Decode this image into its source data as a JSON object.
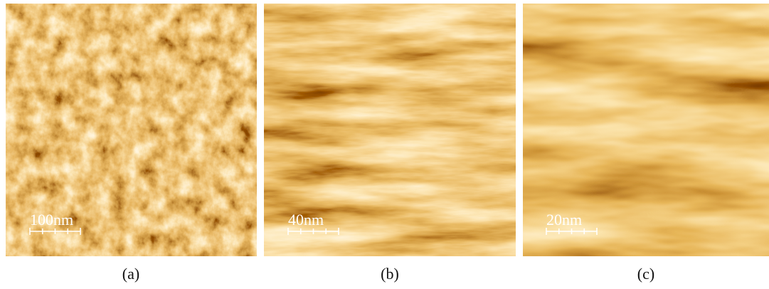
{
  "panels": [
    {
      "scale_label": "100nm",
      "caption": "(a)"
    },
    {
      "scale_label": "40nm",
      "caption": "(b)"
    },
    {
      "scale_label": "20nm",
      "caption": "(c)"
    }
  ]
}
